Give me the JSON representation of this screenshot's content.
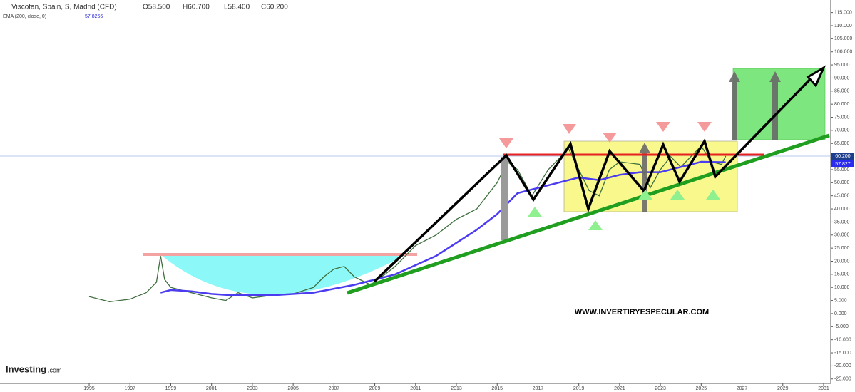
{
  "header": {
    "title": "Viscofan, Spain, S, Madrid (CFD)",
    "ohlc": [
      "O58.500",
      "H60.700",
      "L58.400",
      "C60.200"
    ],
    "indicator": "EMA (200, close, 0)",
    "indicator_value": "57.8266"
  },
  "watermark": "WWW.INVERTIRYESPECULAR.COM",
  "logo": {
    "brand": "Investing",
    "suffix": ".com"
  },
  "price_tags": [
    "60.200",
    "57.827"
  ],
  "chart_data": {
    "type": "line",
    "series": [
      {
        "name": "Price",
        "color": "#3d6e3d",
        "x": [
          1995.0,
          1996.0,
          1997.0,
          1997.8,
          1998.3,
          1998.5,
          1998.7,
          1999.0,
          2000.0,
          2001.0,
          2001.7,
          2002.3,
          2003.0,
          2004.0,
          2005.0,
          2006.0,
          2006.5,
          2007.0,
          2007.5,
          2008.0,
          2008.8,
          2009.5,
          2010.0,
          2010.5,
          2011.0,
          2012.0,
          2013.0,
          2014.0,
          2015.0,
          2015.5,
          2016.0,
          2016.7,
          2017.5,
          2018.5,
          2019.0,
          2019.5,
          2020.0,
          2020.5,
          2021.0,
          2022.0,
          2022.5,
          2023.0,
          2023.5,
          2024.0,
          2024.5,
          2025.0,
          2025.5,
          2026.0,
          2026.2
        ],
        "values": [
          6.5,
          4.5,
          5.5,
          8,
          12,
          22,
          13,
          10,
          8,
          6,
          5,
          8,
          6,
          7,
          7.5,
          10,
          14,
          17,
          18,
          14,
          11,
          15,
          18,
          22,
          26,
          30,
          36,
          40,
          50,
          58,
          55,
          45,
          55,
          63,
          55,
          47,
          45,
          55,
          58,
          57,
          48,
          55,
          60,
          56,
          60,
          64,
          58,
          57,
          60.2
        ]
      },
      {
        "name": "EMA",
        "color": "#4b3cf0",
        "x": [
          1998.5,
          1999.0,
          2000.0,
          2001.0,
          2002.0,
          2004.0,
          2006.0,
          2008.0,
          2010.0,
          2012.0,
          2014.0,
          2015.0,
          2016.0,
          2017.0,
          2018.0,
          2019.0,
          2020.0,
          2021.0,
          2022.0,
          2023.0,
          2024.0,
          2025.0,
          2026.2
        ],
        "values": [
          8,
          9,
          8.5,
          7.5,
          7,
          7,
          8,
          11,
          15,
          22,
          32,
          38,
          46,
          48,
          50,
          52,
          51,
          53,
          54,
          54,
          56,
          58,
          57.8
        ]
      }
    ],
    "xlim": [
      1990.63,
      2031.35
    ],
    "xticks": [
      1995,
      1997,
      1999,
      2001,
      2003,
      2005,
      2007,
      2009,
      2011,
      2013,
      2015,
      2017,
      2019,
      2021,
      2023,
      2025,
      2027,
      2029,
      2031
    ],
    "ylim": [
      -26.7,
      119.8
    ],
    "yticks": [
      {
        "value": -25,
        "label": "-25.000"
      },
      {
        "value": -20,
        "label": "-20.000"
      },
      {
        "value": -15,
        "label": "-15.000"
      },
      {
        "value": -10,
        "label": "-10.000"
      },
      {
        "value": -5,
        "label": "-5.000"
      },
      {
        "value": 0,
        "label": "0.000"
      },
      {
        "value": 5,
        "label": "5.000"
      },
      {
        "value": 10,
        "label": "10.000"
      },
      {
        "value": 15,
        "label": "15.000"
      },
      {
        "value": 20,
        "label": "20.000"
      },
      {
        "value": 25,
        "label": "25.000"
      },
      {
        "value": 30,
        "label": "30.000"
      },
      {
        "value": 35,
        "label": "35.000"
      },
      {
        "value": 40,
        "label": "40.000"
      },
      {
        "value": 45,
        "label": "45.000"
      },
      {
        "value": 50,
        "label": "50.000"
      },
      {
        "value": 55,
        "label": "55.000"
      },
      {
        "value": 60,
        "label": "60.000"
      },
      {
        "value": 65,
        "label": "65.000"
      },
      {
        "value": 70,
        "label": "70.000"
      },
      {
        "value": 75,
        "label": "75.000"
      },
      {
        "value": 80,
        "label": "80.000"
      },
      {
        "value": 85,
        "label": "85.000"
      },
      {
        "value": 90,
        "label": "90.000"
      },
      {
        "value": 95,
        "label": "95.000"
      },
      {
        "value": 100,
        "label": "100.000"
      },
      {
        "value": 105,
        "label": "105.000"
      },
      {
        "value": 110,
        "label": "110.000"
      },
      {
        "value": 115,
        "label": "115.000"
      }
    ],
    "grid": false
  }
}
